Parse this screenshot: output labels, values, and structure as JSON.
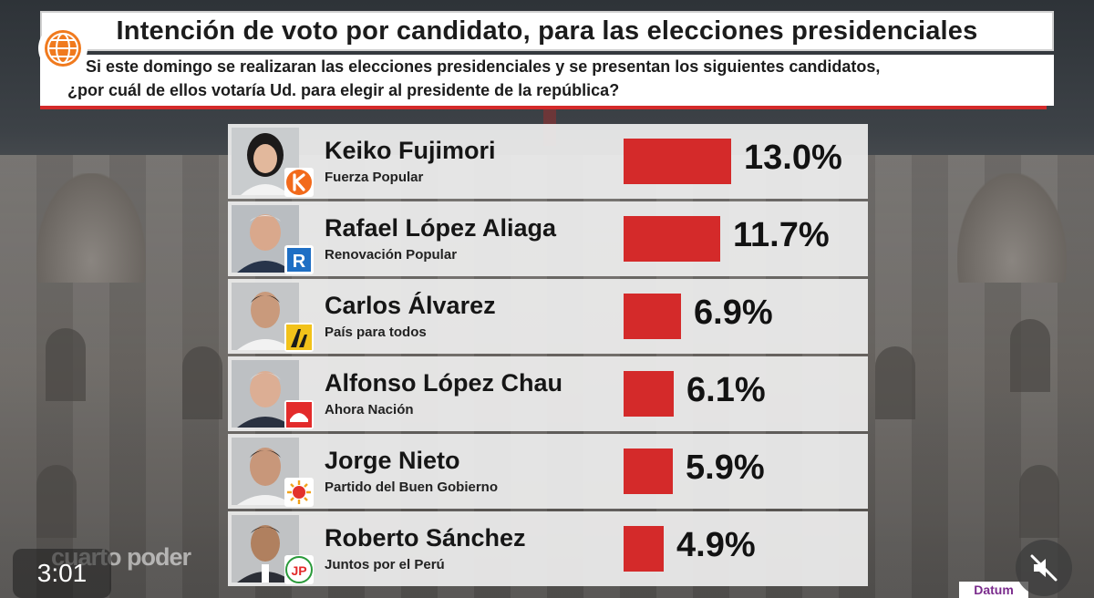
{
  "header": {
    "title": "Intención de voto por candidato, para las elecciones presidenciales",
    "question_line1": "Si este domingo se realizaran las elecciones presidenciales y se presentan los siguientes candidatos,",
    "question_line2": "¿por cuál de ellos votaría Ud. para elegir al presidente de la república?"
  },
  "colors": {
    "bar": "#d42a2a",
    "accent_line": "#d42a2a",
    "row_bg": "#ececec"
  },
  "chart_data": {
    "type": "bar",
    "orientation": "horizontal",
    "title": "Intención de voto por candidato, para las elecciones presidenciales",
    "categories": [
      "Keiko Fujimori",
      "Rafael López Aliaga",
      "Carlos Álvarez",
      "Alfonso López Chau",
      "Jorge Nieto",
      "Roberto Sánchez"
    ],
    "parties": [
      "Fuerza Popular",
      "Renovación Popular",
      "País para todos",
      "Ahora Nación",
      "Partido del Buen Gobierno",
      "Juntos por el  Perú"
    ],
    "values": [
      13.0,
      11.7,
      6.9,
      6.1,
      5.9,
      4.9
    ],
    "labels": [
      "13.0%",
      "11.7%",
      "6.9%",
      "6.1%",
      "5.9%",
      "4.9%"
    ],
    "unit": "%",
    "xlim": [
      0,
      13.0
    ]
  },
  "candidates": [
    {
      "name": "Keiko Fujimori",
      "party": "Fuerza Popular",
      "pct": "13.0%",
      "photo_icon": "candidate-photo",
      "party_icon": "fuerza-popular-k-logo"
    },
    {
      "name": "Rafael López Aliaga",
      "party": "Renovación Popular",
      "pct": "11.7%",
      "photo_icon": "candidate-photo",
      "party_icon": "renovacion-popular-r-logo"
    },
    {
      "name": "Carlos Álvarez",
      "party": "País para todos",
      "pct": "6.9%",
      "photo_icon": "candidate-photo",
      "party_icon": "pais-para-todos-logo"
    },
    {
      "name": "Alfonso López Chau",
      "party": "Ahora Nación",
      "pct": "6.1%",
      "photo_icon": "candidate-photo",
      "party_icon": "ahora-nacion-logo"
    },
    {
      "name": "Jorge Nieto",
      "party": "Partido del Buen Gobierno",
      "pct": "5.9%",
      "photo_icon": "candidate-photo",
      "party_icon": "buen-gobierno-sun-logo"
    },
    {
      "name": "Roberto Sánchez",
      "party": "Juntos por el  Perú",
      "pct": "4.9%",
      "photo_icon": "candidate-photo",
      "party_icon": "juntos-por-el-peru-jp-logo"
    }
  ],
  "overlays": {
    "video_time": "3:01",
    "watermark": "cuarto poder",
    "source_logo": "Datum",
    "mute_icon": "speaker-muted-icon",
    "channel_icon": "globe-icon"
  }
}
